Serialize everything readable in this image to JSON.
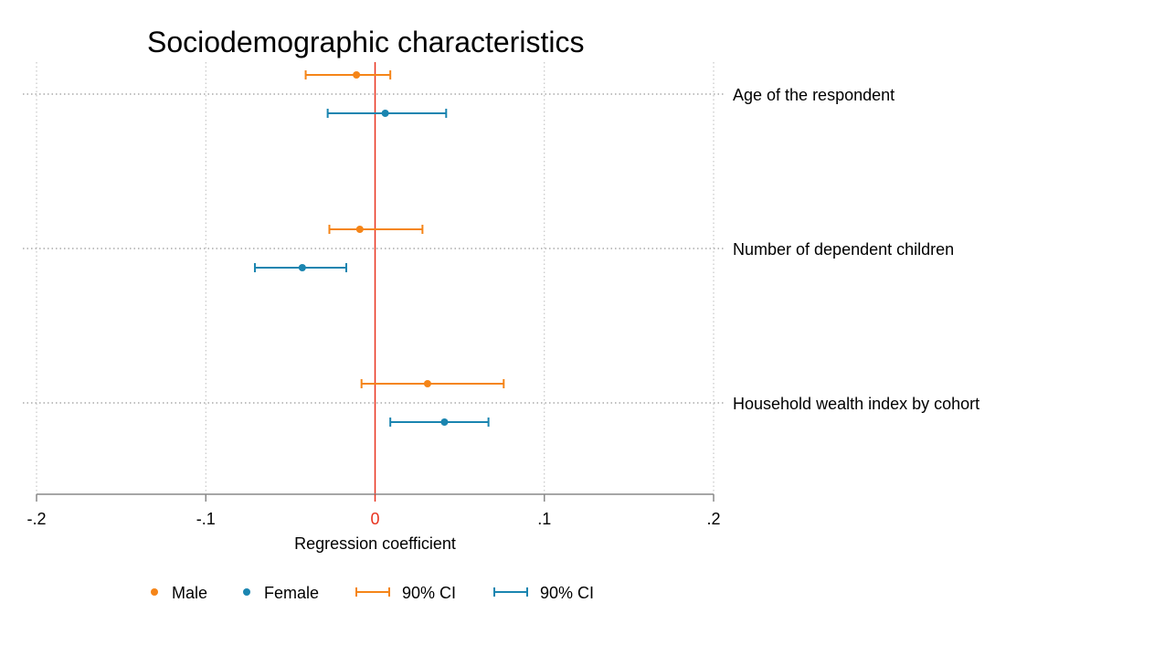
{
  "colors": {
    "male": "#F58518",
    "female": "#1A85B0",
    "zero_line": "#E8321E",
    "zero_tick": "#E8321E",
    "axis": "#888888",
    "grid": "#BBBBBB",
    "text": "#000000"
  },
  "chart_data": {
    "type": "coefficient-plot",
    "title": "Sociodemographic characteristics",
    "xlabel": "Regression coefficient",
    "xlim": [
      -0.2,
      0.2
    ],
    "x_ticks": [
      {
        "value": -0.2,
        "label": "-.2"
      },
      {
        "value": -0.1,
        "label": "-.1"
      },
      {
        "value": 0,
        "label": "0"
      },
      {
        "value": 0.1,
        "label": ".1"
      },
      {
        "value": 0.2,
        "label": ".2"
      }
    ],
    "reference_line": 0,
    "grid": true,
    "categories": [
      "Age of the respondent",
      "Number of dependent children",
      "Household wealth index by cohort"
    ],
    "series": [
      {
        "name": "Male",
        "color_key": "male",
        "estimates": [
          -0.011,
          -0.009,
          0.031
        ],
        "ci_low": [
          -0.041,
          -0.027,
          -0.008
        ],
        "ci_high": [
          0.009,
          0.028,
          0.076
        ]
      },
      {
        "name": "Female",
        "color_key": "female",
        "estimates": [
          0.006,
          -0.043,
          0.041
        ],
        "ci_low": [
          -0.028,
          -0.071,
          0.009
        ],
        "ci_high": [
          0.042,
          -0.017,
          0.067
        ]
      }
    ],
    "legend": {
      "position": "bottom",
      "items": [
        {
          "label": "Male",
          "kind": "marker",
          "color_key": "male"
        },
        {
          "label": "Female",
          "kind": "marker",
          "color_key": "female"
        },
        {
          "label": "90% CI",
          "kind": "ci",
          "color_key": "male"
        },
        {
          "label": "90% CI",
          "kind": "ci",
          "color_key": "female"
        }
      ]
    }
  }
}
